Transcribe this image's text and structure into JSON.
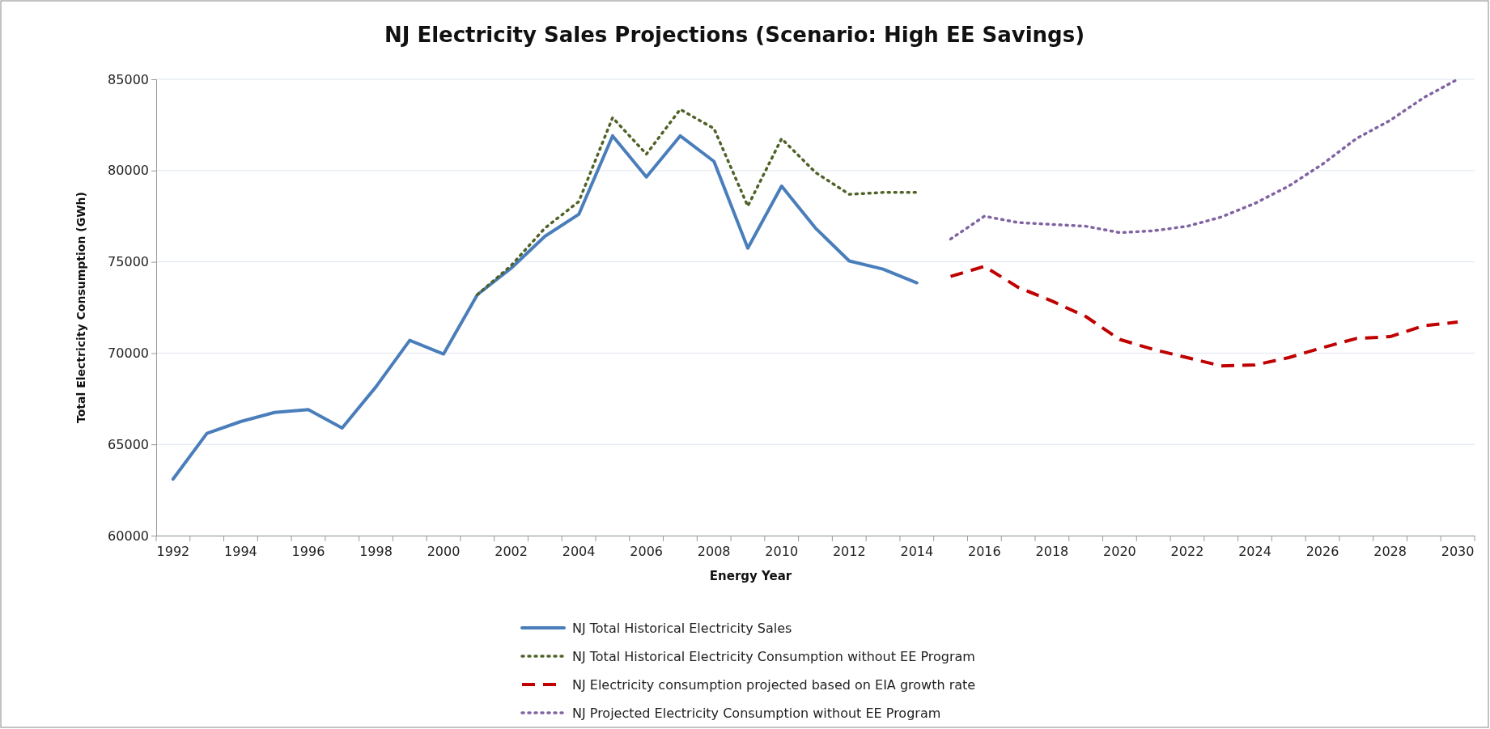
{
  "chart_data": {
    "type": "line",
    "title": "NJ Electricity Sales Projections (Scenario: High EE Savings)",
    "xlabel": "Energy Year",
    "ylabel": "Total Electricity Consumption (GWh)",
    "categories": [
      "1992",
      null,
      "1994",
      null,
      "1996",
      null,
      "1998",
      null,
      "2000",
      null,
      "2002",
      null,
      "2004",
      null,
      "2006",
      null,
      "2008",
      null,
      "2010",
      null,
      "2012",
      null,
      "2014",
      null,
      "2016",
      null,
      "2018",
      null,
      "2020",
      null,
      "2022",
      null,
      "2024",
      null,
      "2026",
      null,
      "2028",
      null,
      "2030"
    ],
    "series": [
      {
        "name": "NJ Total Historical Electricity Sales",
        "color": "#4a7ebb",
        "line_style": "solid",
        "values": [
          63100,
          65600,
          66250,
          66750,
          66900,
          65900,
          68150,
          70700,
          69950,
          73200,
          74650,
          76400,
          77600,
          81900,
          79650,
          81900,
          80500,
          75750,
          79150,
          76850,
          75050,
          74600,
          73850,
          null,
          null,
          null,
          null,
          null,
          null,
          null,
          null,
          null,
          null,
          null,
          null,
          null,
          null,
          null,
          null
        ]
      },
      {
        "name": "NJ Total Historical Electricity Consumption without EE Program",
        "color": "#4f6228",
        "line_style": "dotted",
        "values": [
          null,
          null,
          null,
          null,
          null,
          null,
          null,
          null,
          null,
          73200,
          74800,
          76850,
          78300,
          82900,
          80900,
          83350,
          82300,
          78050,
          81750,
          79900,
          78700,
          78800,
          78800,
          null,
          null,
          null,
          null,
          null,
          null,
          null,
          null,
          null,
          null,
          null,
          null,
          null,
          null,
          null,
          null
        ]
      },
      {
        "name": "NJ Electricity consumption projected based on EIA growth rate",
        "color": "#c00000",
        "line_style": "dashed",
        "values": [
          null,
          null,
          null,
          null,
          null,
          null,
          null,
          null,
          null,
          null,
          null,
          null,
          null,
          null,
          null,
          null,
          null,
          null,
          null,
          null,
          null,
          null,
          null,
          74200,
          74750,
          73600,
          72850,
          72000,
          70750,
          70200,
          69750,
          69300,
          69350,
          69750,
          70300,
          70800,
          70900,
          71500,
          71700
        ]
      },
      {
        "name": "NJ Projected Electricity Consumption without EE Program",
        "color": "#8064a2",
        "line_style": "dotted",
        "values": [
          null,
          null,
          null,
          null,
          null,
          null,
          null,
          null,
          null,
          null,
          null,
          null,
          null,
          null,
          null,
          null,
          null,
          null,
          null,
          null,
          null,
          null,
          null,
          76250,
          77500,
          77150,
          77050,
          76950,
          76600,
          76700,
          76950,
          77450,
          78200,
          79150,
          80350,
          81750,
          82750,
          84000,
          85000
        ]
      }
    ],
    "ylim": [
      60000,
      85000
    ],
    "yticks": [
      60000,
      65000,
      70000,
      75000,
      80000,
      85000
    ],
    "grid": "y",
    "legend": "bottom"
  }
}
